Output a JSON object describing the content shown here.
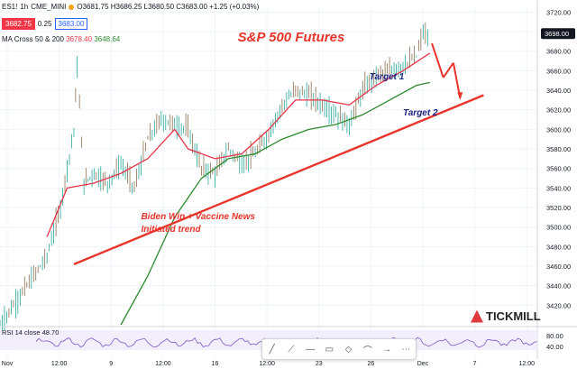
{
  "header": {
    "symbol": "ES1!",
    "interval": "1h",
    "exchange": "CME_MINI",
    "ohlc": "O3681.75 H3686.25 L3680.50 C3683.00 +1.25 (+0.03%)",
    "bid": "3682.75",
    "spread": "0.25",
    "ask": "3683.00"
  },
  "ma_legend": {
    "label": "MA Cross 50 & 200",
    "ma50": "3678.40",
    "ma200": "3648.64"
  },
  "rsi": {
    "label": "RSI 14 close",
    "value": "48.70"
  },
  "logo": {
    "text": "TICKMILL"
  },
  "toolbar": {
    "icons": [
      "line-tool-icon",
      "ray-tool-icon",
      "horizontal-line-icon",
      "comment-icon",
      "shape-icon",
      "path-icon",
      "arrow-icon",
      "more-icon"
    ]
  },
  "colors": {
    "up": "#26a69a",
    "down": "#8b6f4e",
    "ma50": "#e8364a",
    "ma200": "#2d8a2d",
    "trend": "#e8342b",
    "rsi": "#7e57c2"
  },
  "chart_data": {
    "type": "line",
    "title": "S&P 500 Futures",
    "y_axis": {
      "range": [
        3400,
        3725
      ],
      "ticks": [
        3420,
        3440,
        3460,
        3480,
        3500,
        3520,
        3540,
        3560,
        3580,
        3600,
        3620,
        3640,
        3660,
        3680,
        3700,
        3720
      ],
      "current_price": "3698.00"
    },
    "x_axis": {
      "ticks": [
        "Nov",
        "12:00",
        "9",
        "12:00",
        "16",
        "12:00",
        "23",
        "26",
        "Dec",
        "7",
        "12:00"
      ]
    },
    "price_path": [
      [
        0,
        3400
      ],
      [
        4,
        3440
      ],
      [
        7,
        3470
      ],
      [
        9,
        3520
      ],
      [
        10,
        3560
      ],
      [
        11,
        3600
      ],
      [
        11.5,
        3665
      ],
      [
        12.5,
        3545
      ],
      [
        14,
        3555
      ],
      [
        16,
        3545
      ],
      [
        18,
        3565
      ],
      [
        20,
        3540
      ],
      [
        22,
        3590
      ],
      [
        24,
        3610
      ],
      [
        26,
        3605
      ],
      [
        28,
        3600
      ],
      [
        30,
        3560
      ],
      [
        32,
        3555
      ],
      [
        34,
        3580
      ],
      [
        36,
        3565
      ],
      [
        38,
        3575
      ],
      [
        40,
        3595
      ],
      [
        42,
        3625
      ],
      [
        44,
        3640
      ],
      [
        46,
        3635
      ],
      [
        48,
        3625
      ],
      [
        50,
        3615
      ],
      [
        52,
        3605
      ],
      [
        54,
        3640
      ],
      [
        56,
        3655
      ],
      [
        58,
        3660
      ],
      [
        60,
        3665
      ],
      [
        62,
        3675
      ],
      [
        63,
        3700
      ],
      [
        64,
        3690
      ]
    ],
    "series": [
      {
        "name": "MA 50",
        "points": [
          [
            7,
            3490
          ],
          [
            10,
            3540
          ],
          [
            14,
            3545
          ],
          [
            18,
            3555
          ],
          [
            22,
            3570
          ],
          [
            26,
            3600
          ],
          [
            28,
            3580
          ],
          [
            32,
            3570
          ],
          [
            36,
            3575
          ],
          [
            40,
            3600
          ],
          [
            44,
            3630
          ],
          [
            48,
            3630
          ],
          [
            52,
            3625
          ],
          [
            56,
            3645
          ],
          [
            60,
            3660
          ],
          [
            64,
            3678
          ]
        ]
      },
      {
        "name": "MA 200",
        "points": [
          [
            18,
            3400
          ],
          [
            22,
            3450
          ],
          [
            26,
            3510
          ],
          [
            30,
            3550
          ],
          [
            34,
            3570
          ],
          [
            38,
            3575
          ],
          [
            42,
            3590
          ],
          [
            46,
            3600
          ],
          [
            50,
            3605
          ],
          [
            54,
            3615
          ],
          [
            58,
            3630
          ],
          [
            62,
            3645
          ],
          [
            64,
            3648
          ]
        ]
      }
    ],
    "trendline": {
      "from": [
        11,
        3462
      ],
      "to": [
        72,
        3635
      ]
    },
    "annotations": [
      {
        "text": "Biden Win + Vaccine News",
        "x": 21,
        "y": 3508
      },
      {
        "text": "Initiated trend",
        "x": 21,
        "y": 3495
      },
      {
        "text": "Target 1",
        "x": 55,
        "y": 3651
      },
      {
        "text": "Target 2",
        "x": 60,
        "y": 3614
      }
    ],
    "rsi": {
      "range": [
        0,
        100
      ],
      "ticks": [
        40,
        80
      ],
      "value": 48.7
    }
  }
}
